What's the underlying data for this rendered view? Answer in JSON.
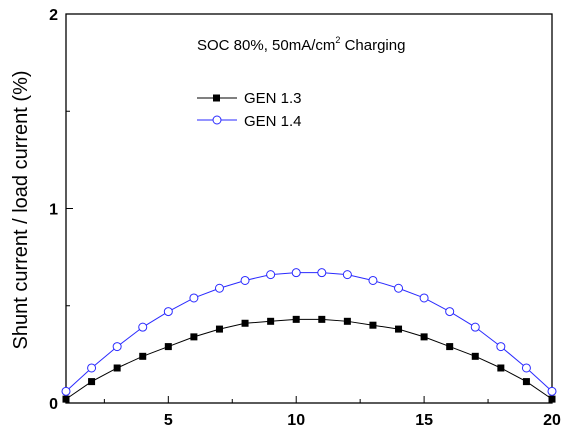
{
  "chart_data": {
    "type": "line",
    "title": "",
    "annotation": {
      "prefix": "SOC 80%, 50mA/cm",
      "superscript": "2",
      "suffix": " Charging"
    },
    "xlabel": "",
    "ylabel": "Shunt current / load current (%)",
    "xlim": [
      1,
      20
    ],
    "ylim": [
      0,
      2
    ],
    "x_ticks": [
      5,
      10,
      15,
      20
    ],
    "x_tick_labels": [
      "5",
      "10",
      "15",
      "20"
    ],
    "y_ticks": [
      0,
      1,
      2
    ],
    "y_tick_labels": [
      "0",
      "1",
      "2"
    ],
    "grid": false,
    "legend_position": "upper-left",
    "x": [
      1,
      2,
      3,
      4,
      5,
      6,
      7,
      8,
      9,
      10,
      11,
      12,
      13,
      14,
      15,
      16,
      17,
      18,
      19,
      20
    ],
    "series": [
      {
        "name": "GEN 1.3",
        "marker": "filled-square",
        "color": "#000000",
        "values": [
          0.02,
          0.11,
          0.18,
          0.24,
          0.29,
          0.34,
          0.38,
          0.41,
          0.42,
          0.43,
          0.43,
          0.42,
          0.4,
          0.38,
          0.34,
          0.29,
          0.24,
          0.18,
          0.11,
          0.02
        ]
      },
      {
        "name": "GEN 1.4",
        "marker": "open-circle",
        "color": "#2a2aff",
        "values": [
          0.06,
          0.18,
          0.29,
          0.39,
          0.47,
          0.54,
          0.59,
          0.63,
          0.66,
          0.67,
          0.67,
          0.66,
          0.63,
          0.59,
          0.54,
          0.47,
          0.39,
          0.29,
          0.18,
          0.06
        ]
      }
    ]
  }
}
